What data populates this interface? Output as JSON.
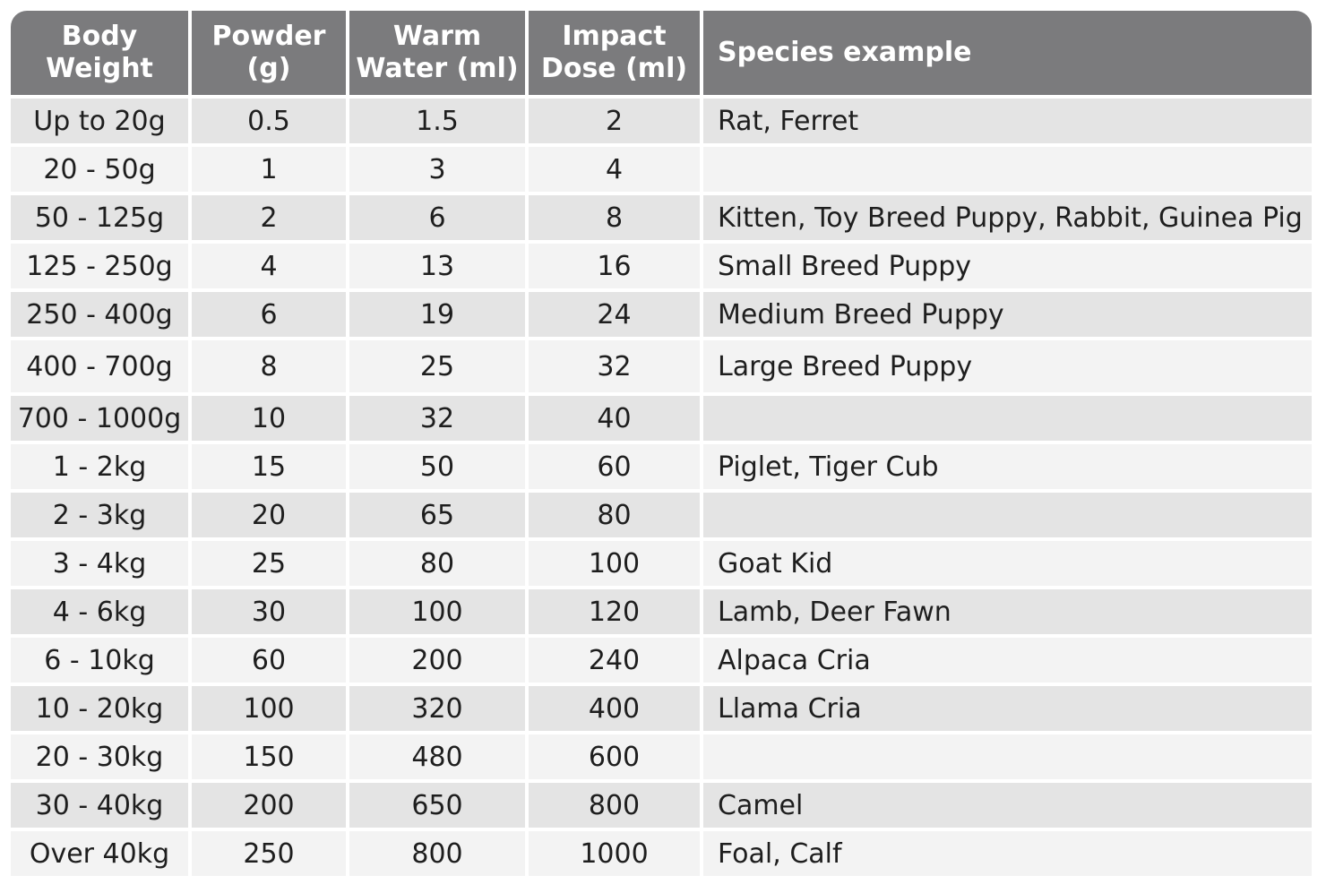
{
  "table": {
    "headers": [
      {
        "line1": "Body",
        "line2": "Weight"
      },
      {
        "line1": "Powder",
        "line2": "(g)"
      },
      {
        "line1": "Warm",
        "line2": "Water (ml)"
      },
      {
        "line1": "Impact",
        "line2": "Dose (ml)"
      },
      {
        "line1": "Species example",
        "line2": ""
      }
    ],
    "rows": [
      {
        "weight": "Up to 20g",
        "powder": "0.5",
        "water": "1.5",
        "dose": "2",
        "species": "Rat, Ferret"
      },
      {
        "weight": "20 - 50g",
        "powder": "1",
        "water": "3",
        "dose": "4",
        "species": ""
      },
      {
        "weight": "50 - 125g",
        "powder": "2",
        "water": "6",
        "dose": "8",
        "species": "Kitten, Toy Breed Puppy, Rabbit, Guinea Pig"
      },
      {
        "weight": "125 - 250g",
        "powder": "4",
        "water": "13",
        "dose": "16",
        "species": "Small Breed Puppy"
      },
      {
        "weight": "250 - 400g",
        "powder": "6",
        "water": "19",
        "dose": "24",
        "species": "Medium Breed Puppy"
      },
      {
        "weight": "400 - 700g",
        "powder": "8",
        "water": "25",
        "dose": "32",
        "species": "Large Breed Puppy"
      },
      {
        "weight": "700 - 1000g",
        "powder": "10",
        "water": "32",
        "dose": "40",
        "species": ""
      },
      {
        "weight": "1 - 2kg",
        "powder": "15",
        "water": "50",
        "dose": "60",
        "species": "Piglet, Tiger Cub"
      },
      {
        "weight": "2 - 3kg",
        "powder": "20",
        "water": "65",
        "dose": "80",
        "species": ""
      },
      {
        "weight": "3 - 4kg",
        "powder": "25",
        "water": "80",
        "dose": "100",
        "species": "Goat Kid"
      },
      {
        "weight": "4 - 6kg",
        "powder": "30",
        "water": "100",
        "dose": "120",
        "species": "Lamb, Deer Fawn"
      },
      {
        "weight": "6 - 10kg",
        "powder": "60",
        "water": "200",
        "dose": "240",
        "species": "Alpaca Cria"
      },
      {
        "weight": "10 - 20kg",
        "powder": "100",
        "water": "320",
        "dose": "400",
        "species": "Llama Cria"
      },
      {
        "weight": "20 - 30kg",
        "powder": "150",
        "water": "480",
        "dose": "600",
        "species": ""
      },
      {
        "weight": "30 - 40kg",
        "powder": "200",
        "water": "650",
        "dose": "800",
        "species": "Camel"
      },
      {
        "weight": "Over 40kg",
        "powder": "250",
        "water": "800",
        "dose": "1000",
        "species": "Foal, Calf"
      }
    ]
  },
  "colors": {
    "header_bg": "#7b7b7d",
    "header_text": "#ffffff",
    "row_shade": "#e4e4e4",
    "row_plain": "#f3f3f3"
  }
}
